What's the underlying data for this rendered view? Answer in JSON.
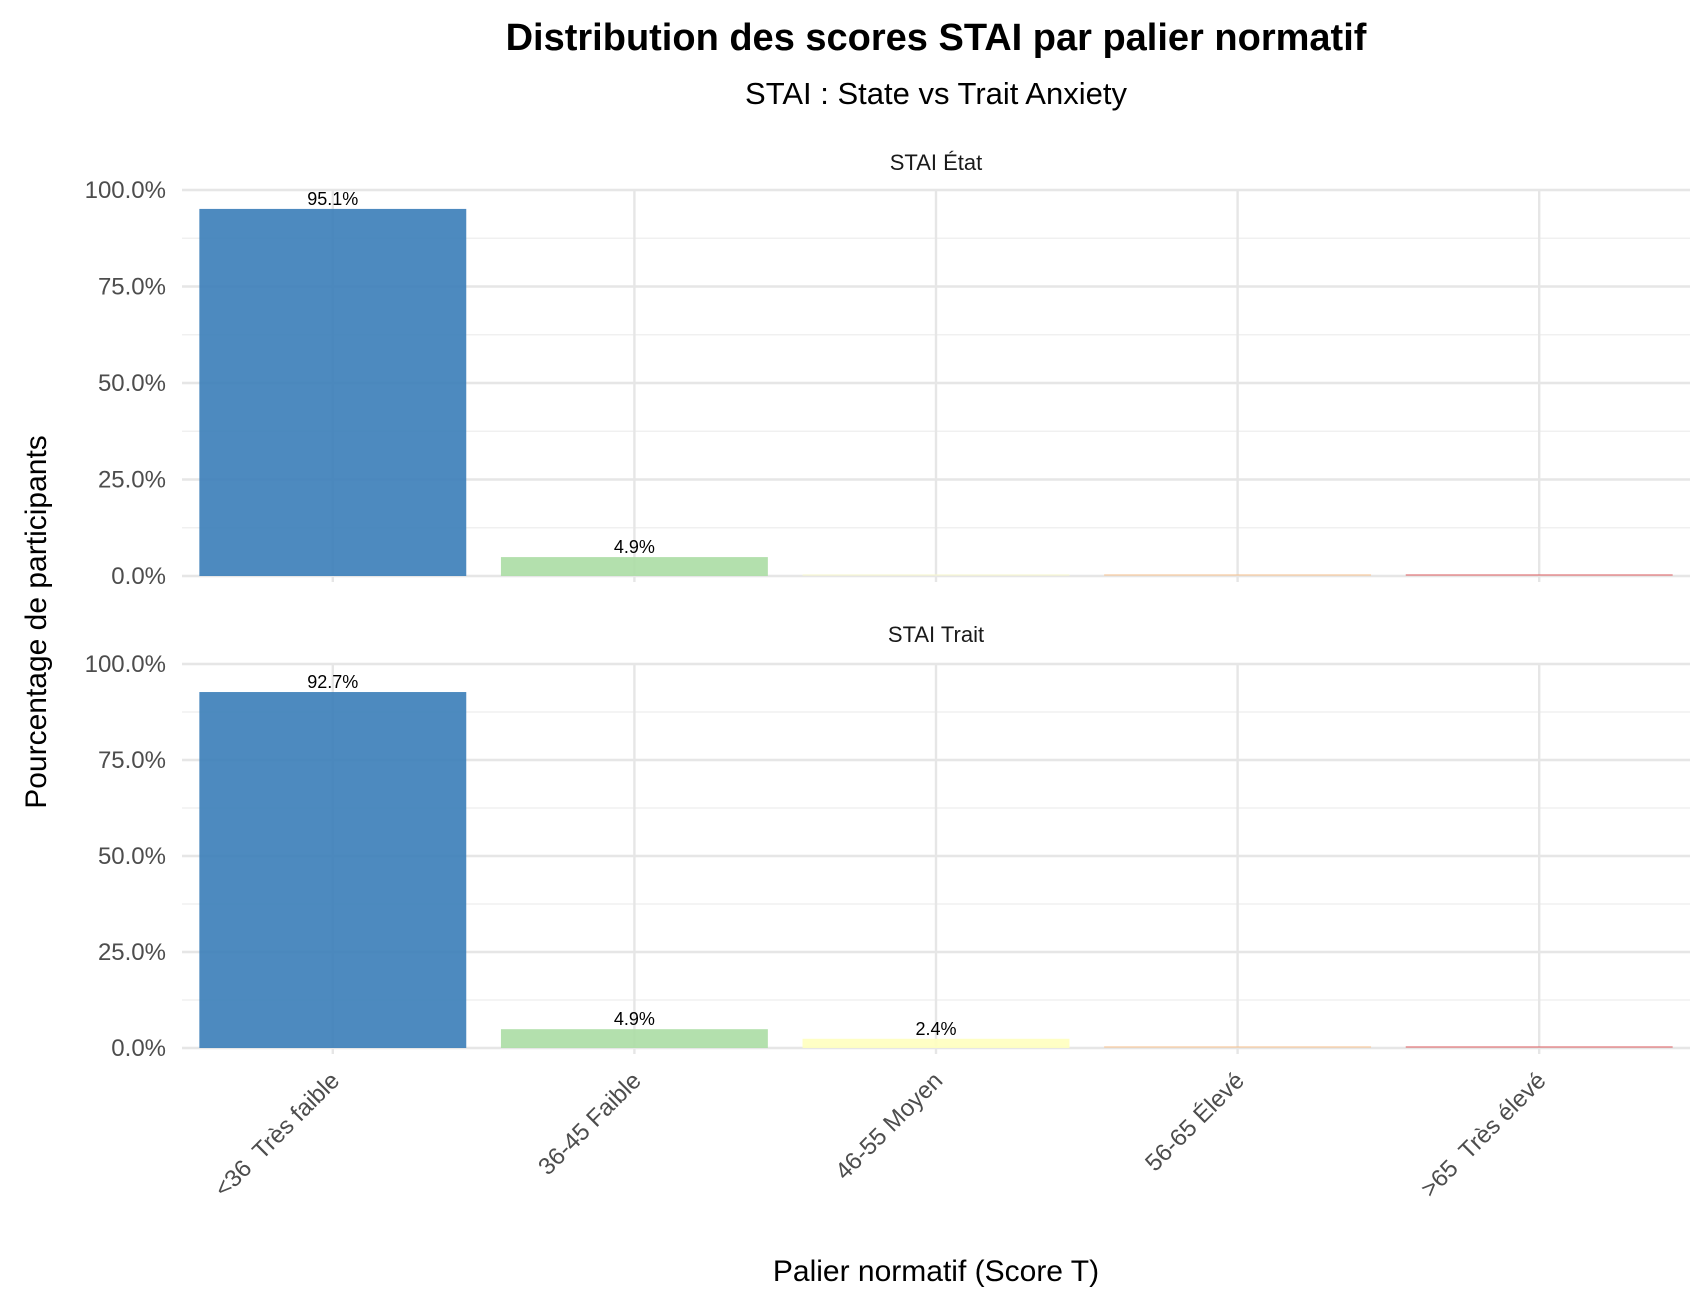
{
  "chart_data": {
    "type": "bar",
    "title": "Distribution des scores STAI par palier normatif",
    "subtitle": "STAI : State vs Trait Anxiety",
    "xlabel": "Palier normatif (Score T)",
    "ylabel": "Pourcentage de participants",
    "categories": [
      "<36  Très faible",
      "36-45 Faible",
      "46-55 Moyen",
      "56-65 Élevé",
      ">65  Très élevé"
    ],
    "ylim": [
      0,
      100
    ],
    "y_ticks": [
      "0.0%",
      "25.0%",
      "50.0%",
      "75.0%",
      "100.0%"
    ],
    "grid": true,
    "colors": [
      "#3a7db8",
      "#abdda4",
      "#ffffbf",
      "#fdae61",
      "#d7191c"
    ],
    "panels": [
      {
        "name": "STAI État",
        "values": [
          95.1,
          4.9,
          0,
          0,
          0
        ],
        "labels": [
          "95.1%",
          "4.9%",
          "",
          "",
          ""
        ]
      },
      {
        "name": "STAI Trait",
        "values": [
          92.7,
          4.9,
          2.4,
          0,
          0
        ],
        "labels": [
          "92.7%",
          "4.9%",
          "2.4%",
          "",
          ""
        ]
      }
    ]
  }
}
